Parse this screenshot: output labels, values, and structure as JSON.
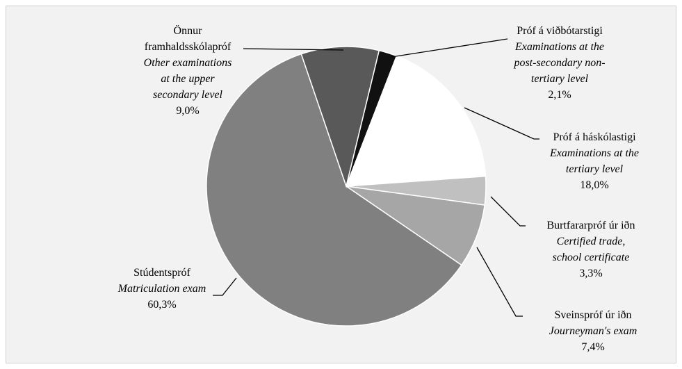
{
  "chart_data": {
    "type": "pie",
    "categories": [
      "Próf á viðbótarstigi",
      "Próf á háskólastigi",
      "Burtfararpróf úr iðn",
      "Sveinspróf úr iðn",
      "Stúdentspróf",
      "Önnur framhaldsskólapróf"
    ],
    "english_labels": [
      "Examinations at the post-secondary non-tertiary level",
      "Examinations at the tertiary level",
      "Certified trade, school certificate",
      "Journeyman's exam",
      "Matriculation exam",
      "Other examinations at the upper secondary level"
    ],
    "values": [
      2.1,
      18.0,
      3.3,
      7.4,
      60.3,
      9.0
    ],
    "value_labels": [
      "2,1%",
      "18,0%",
      "3,3%",
      "7,4%",
      "60,3%",
      "9,0%"
    ],
    "colors": [
      "#111111",
      "#ffffff",
      "#c0c0c0",
      "#a6a6a6",
      "#808080",
      "#595959"
    ]
  }
}
